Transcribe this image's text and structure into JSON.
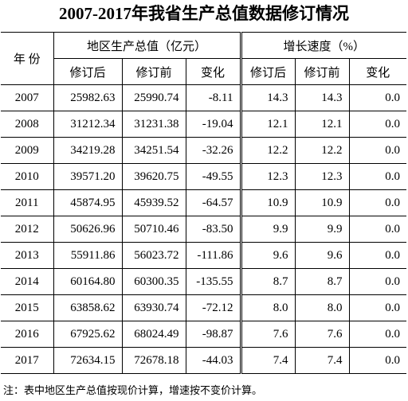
{
  "title": "2007-2017年我省生产总值数据修订情况",
  "table": {
    "header": {
      "year": "年 份",
      "gdp_group": "地区生产总值（亿元）",
      "growth_group": "增长速度（%）",
      "sub": [
        "修订后",
        "修订前",
        "变化",
        "修订后",
        "修订前",
        "变化"
      ]
    },
    "rows": [
      [
        "2007",
        "25982.63",
        "25990.74",
        "-8.11",
        "14.3",
        "14.3",
        "0.0"
      ],
      [
        "2008",
        "31212.34",
        "31231.38",
        "-19.04",
        "12.1",
        "12.1",
        "0.0"
      ],
      [
        "2009",
        "34219.28",
        "34251.54",
        "-32.26",
        "12.2",
        "12.2",
        "0.0"
      ],
      [
        "2010",
        "39571.20",
        "39620.75",
        "-49.55",
        "12.3",
        "12.3",
        "0.0"
      ],
      [
        "2011",
        "45874.95",
        "45939.52",
        "-64.57",
        "10.9",
        "10.9",
        "0.0"
      ],
      [
        "2012",
        "50626.96",
        "50710.46",
        "-83.50",
        "9.9",
        "9.9",
        "0.0"
      ],
      [
        "2013",
        "55911.86",
        "56023.72",
        "-111.86",
        "9.6",
        "9.6",
        "0.0"
      ],
      [
        "2014",
        "60164.80",
        "60300.35",
        "-135.55",
        "8.7",
        "8.7",
        "0.0"
      ],
      [
        "2015",
        "63858.62",
        "63930.74",
        "-72.12",
        "8.0",
        "8.0",
        "0.0"
      ],
      [
        "2016",
        "67925.62",
        "68024.49",
        "-98.87",
        "7.6",
        "7.6",
        "0.0"
      ],
      [
        "2017",
        "72634.15",
        "72678.18",
        "-44.03",
        "7.4",
        "7.4",
        "0.0"
      ]
    ]
  },
  "footnote": "注：表中地区生产总值按现价计算，增速按不变价计算。"
}
